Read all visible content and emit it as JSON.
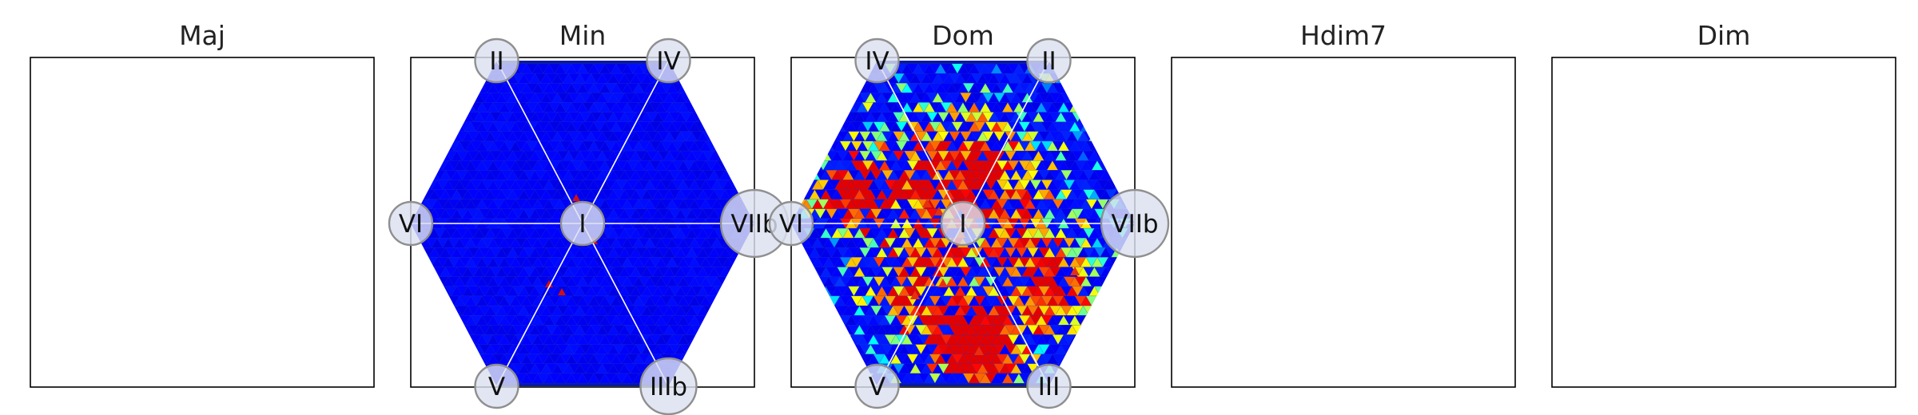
{
  "figure": {
    "panels": [
      {
        "title": "Maj",
        "nodes": []
      },
      {
        "title": "Min",
        "nodes": [
          {
            "label": "II",
            "pos": "top-left",
            "size": "small"
          },
          {
            "label": "IV",
            "pos": "top-right",
            "size": "small"
          },
          {
            "label": "VI",
            "pos": "left",
            "size": "small"
          },
          {
            "label": "I",
            "pos": "center",
            "size": "small"
          },
          {
            "label": "VIIb",
            "pos": "right",
            "size": "large"
          },
          {
            "label": "V",
            "pos": "bottom-left",
            "size": "small"
          },
          {
            "label": "IIIb",
            "pos": "bottom-right",
            "size": "medium"
          }
        ],
        "density": "low"
      },
      {
        "title": "Dom",
        "nodes": [
          {
            "label": "IV",
            "pos": "top-left",
            "size": "small"
          },
          {
            "label": "II",
            "pos": "top-right",
            "size": "small"
          },
          {
            "label": "VI",
            "pos": "left",
            "size": "small"
          },
          {
            "label": "I",
            "pos": "center",
            "size": "small"
          },
          {
            "label": "VIIb",
            "pos": "right",
            "size": "large"
          },
          {
            "label": "V",
            "pos": "bottom-left",
            "size": "small"
          },
          {
            "label": "III",
            "pos": "bottom-right",
            "size": "small"
          }
        ],
        "density": "high"
      },
      {
        "title": "Hdim7",
        "nodes": []
      },
      {
        "title": "Dim",
        "nodes": []
      }
    ]
  },
  "chart_data": [
    {
      "type": "heatmap",
      "title": "Maj",
      "series": []
    },
    {
      "type": "heatmap",
      "title": "Min",
      "colormap": "jet",
      "background": "#0a1aa0",
      "hot_spots": 4
    },
    {
      "type": "heatmap",
      "title": "Dom",
      "colormap": "jet",
      "background": "#0a1aa0",
      "hot_spots": 420
    },
    {
      "type": "heatmap",
      "title": "Hdim7",
      "series": []
    },
    {
      "type": "heatmap",
      "title": "Dim",
      "series": []
    }
  ]
}
